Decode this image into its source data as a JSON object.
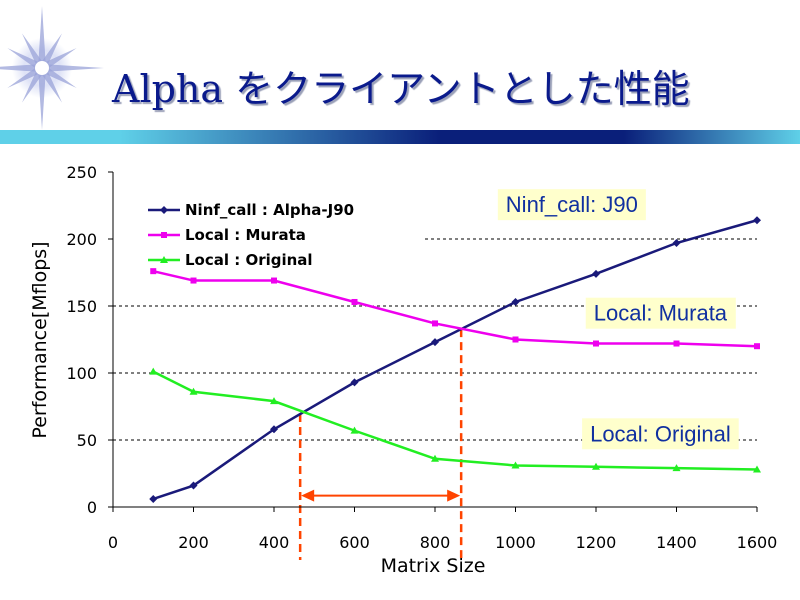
{
  "slide": {
    "title": "Alpha をクライアントとした性能"
  },
  "colors": {
    "title": "#0a1a8c",
    "bar_dark": "#0a1f7a",
    "bar_light": "#5fd0e8"
  },
  "chart_data": {
    "type": "line",
    "xlabel": "Matrix Size",
    "ylabel": "Performance[Mflops]",
    "xlim": [
      0,
      1600
    ],
    "ylim": [
      0,
      250
    ],
    "x_ticks": [
      0,
      200,
      400,
      600,
      800,
      1000,
      1200,
      1400,
      1600
    ],
    "y_ticks": [
      0,
      50,
      100,
      150,
      200,
      250
    ],
    "grid": "horizontal-dashed",
    "legend_position": "top-left",
    "series": [
      {
        "name": "Ninf_call : Alpha-J90",
        "color": "#1a1a7a",
        "marker": "diamond",
        "x": [
          100,
          200,
          400,
          600,
          800,
          1000,
          1200,
          1400,
          1600
        ],
        "y": [
          6,
          16,
          58,
          93,
          123,
          153,
          174,
          197,
          214
        ]
      },
      {
        "name": "Local : Murata",
        "color": "#ee00ee",
        "marker": "square",
        "x": [
          100,
          200,
          400,
          600,
          800,
          1000,
          1200,
          1400,
          1600
        ],
        "y": [
          176,
          169,
          169,
          153,
          137,
          125,
          122,
          122,
          120
        ]
      },
      {
        "name": "Local : Original",
        "color": "#22ee22",
        "marker": "triangle",
        "x": [
          100,
          200,
          400,
          600,
          800,
          1000,
          1200,
          1400,
          1600
        ],
        "y": [
          101,
          86,
          79,
          57,
          36,
          31,
          30,
          29,
          28
        ]
      }
    ],
    "annotations": [
      {
        "text": "Ninf_call: J90",
        "x": 1140,
        "y": 226
      },
      {
        "text": "Local: Murata",
        "x": 1360,
        "y": 145
      },
      {
        "text": "Local: Original",
        "x": 1360,
        "y": 55
      }
    ],
    "crossover_lines": [
      {
        "x": 465,
        "color": "#ff4400"
      },
      {
        "x": 865,
        "color": "#ff4400"
      }
    ],
    "range_arrow": {
      "x_start": 465,
      "x_end": 865,
      "y": 10,
      "color": "#ff4400"
    }
  }
}
